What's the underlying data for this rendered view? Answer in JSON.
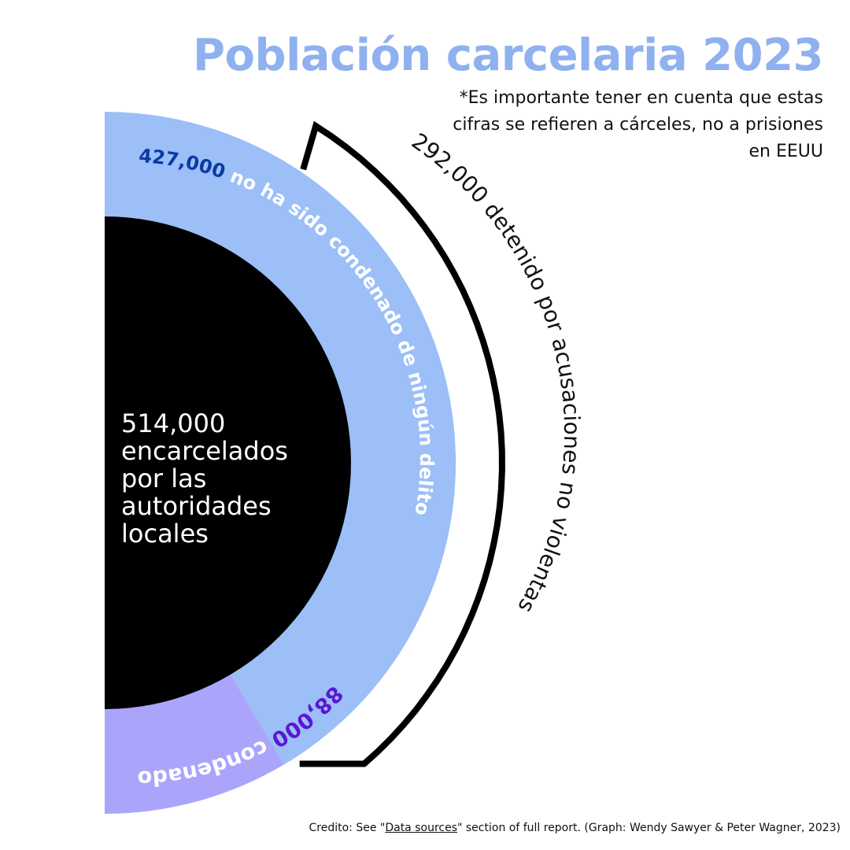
{
  "title": "Población carcelaria 2023",
  "subtitle": "*Es importante tener en cuenta que estas cifras se refieren a cárceles, no a prisiones en EEUU",
  "colors": {
    "title": "#8fb1ef",
    "not_convicted": "#9bbff6",
    "convicted": "#aaa5fb",
    "center": "#000000",
    "not_convicted_number": "#0b3aa6",
    "convicted_number": "#5a17d6",
    "bracket": "#000000"
  },
  "chart_data": {
    "type": "pie",
    "title": "Población carcelaria 2023",
    "total": {
      "value": 514000,
      "number": "514,000",
      "label_lines": [
        "encarcelados",
        "por las",
        "autoridades",
        "locales"
      ]
    },
    "slices": [
      {
        "name": "no ha sido condenado de ningún delito",
        "value": 427000,
        "number": "427,000"
      },
      {
        "name": "condenados",
        "value": 88000,
        "number": "88,000"
      }
    ],
    "bracket": {
      "value": 292000,
      "number": "292,000",
      "label": "detenido por acusaciones no violentas",
      "subset_of": "no ha sido condenado de ningún delito"
    }
  },
  "credit": {
    "prefix": "Credito: See \"",
    "link": "Data sources",
    "suffix": "\" section of full report. (Graph: Wendy Sawyer & Peter Wagner, 2023)"
  }
}
